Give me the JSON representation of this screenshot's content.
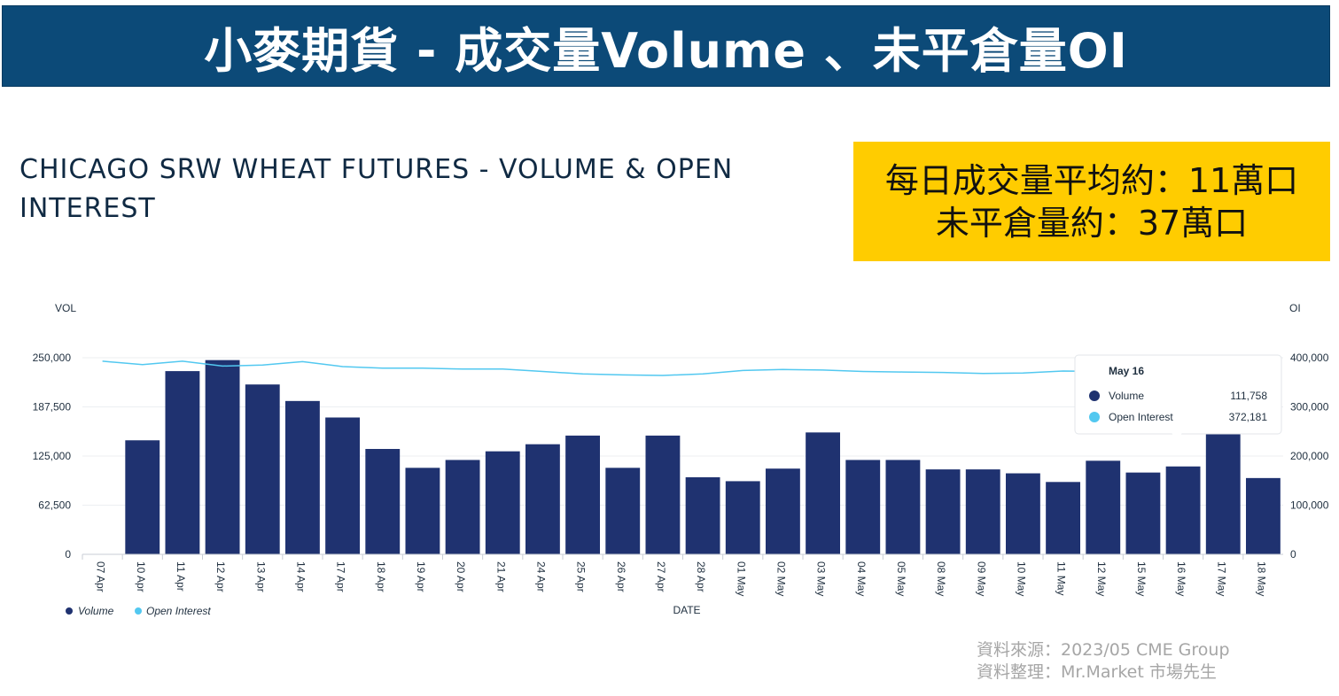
{
  "banner": {
    "title": "小麥期貨 - 成交量Volume 、未平倉量OI"
  },
  "chart_title": "CHICAGO SRW WHEAT FUTURES - VOLUME & OPEN INTEREST",
  "callout": {
    "line1": "每日成交量平均約：11萬口",
    "line2": "未平倉量約：37萬口"
  },
  "source": {
    "line1": "資料來源：2023/05 CME Group",
    "line2": "資料整理：Mr.Market 市場先生"
  },
  "colors": {
    "banner": "#0c4a78",
    "volume": "#1f3270",
    "open_interest": "#52c8f0",
    "callout": "#ffcc00"
  },
  "tooltip": {
    "date": "May 16",
    "rows": [
      {
        "label": "Volume",
        "value": "111,758"
      },
      {
        "label": "Open Interest",
        "value": "372,181"
      }
    ]
  },
  "chart_data": {
    "type": "bar",
    "xlabel": "DATE",
    "ylabel": "VOL",
    "y2label": "OI",
    "ylim": [
      0,
      250000
    ],
    "y2lim": [
      0,
      400000
    ],
    "yticks": [
      "0",
      "62,500",
      "125,000",
      "187,500",
      "250,000"
    ],
    "y2ticks": [
      "0",
      "100,000",
      "200,000",
      "300,000",
      "400,000"
    ],
    "categories": [
      "07 Apr",
      "10 Apr",
      "11 Apr",
      "12 Apr",
      "13 Apr",
      "14 Apr",
      "17 Apr",
      "18 Apr",
      "19 Apr",
      "20 Apr",
      "21 Apr",
      "24 Apr",
      "25 Apr",
      "26 Apr",
      "27 Apr",
      "28 Apr",
      "01 May",
      "02 May",
      "03 May",
      "04 May",
      "05 May",
      "08 May",
      "09 May",
      "10 May",
      "11 May",
      "12 May",
      "15 May",
      "16 May",
      "17 May",
      "18 May"
    ],
    "series": [
      {
        "name": "Volume",
        "type": "bar",
        "axis": "left",
        "values": [
          0,
          145000,
          233000,
          247000,
          216000,
          195000,
          174000,
          134000,
          110000,
          120000,
          131000,
          140000,
          151000,
          110000,
          151000,
          98000,
          93000,
          109000,
          155000,
          120000,
          120000,
          108000,
          108000,
          103000,
          92000,
          119000,
          104000,
          111758,
          156000,
          97000
        ]
      },
      {
        "name": "Open Interest",
        "type": "line",
        "axis": "right",
        "values": [
          393000,
          386000,
          393000,
          383000,
          385000,
          392000,
          382000,
          379000,
          379000,
          377000,
          377000,
          372000,
          367000,
          365000,
          364000,
          367000,
          374000,
          376000,
          375000,
          372000,
          371000,
          370000,
          368000,
          369000,
          373000,
          372000,
          372000,
          372181,
          372000,
          372000
        ]
      }
    ],
    "legend": "bottom-left",
    "grid": true
  }
}
